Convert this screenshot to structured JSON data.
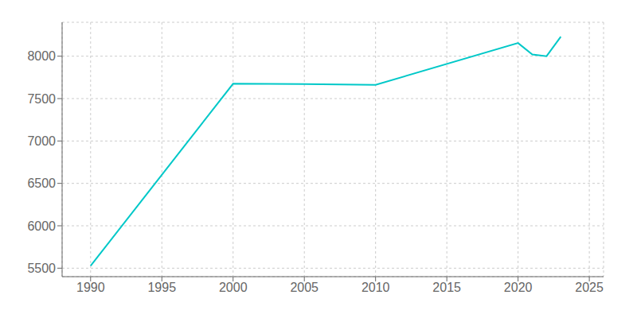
{
  "chart_data": {
    "type": "line",
    "x": [
      1990,
      2000,
      2005,
      2010,
      2020,
      2021,
      2022,
      2023
    ],
    "values": [
      5527,
      7675,
      7670,
      7662,
      8155,
      8020,
      8000,
      8230
    ],
    "color": "#00C8C8",
    "xlim": [
      1988,
      2026
    ],
    "ylim": [
      5400,
      8400
    ],
    "xticks": [
      1990,
      1995,
      2000,
      2005,
      2010,
      2015,
      2020,
      2025
    ],
    "yticks": [
      5500,
      6000,
      6500,
      7000,
      7500,
      8000
    ],
    "grid": true
  }
}
